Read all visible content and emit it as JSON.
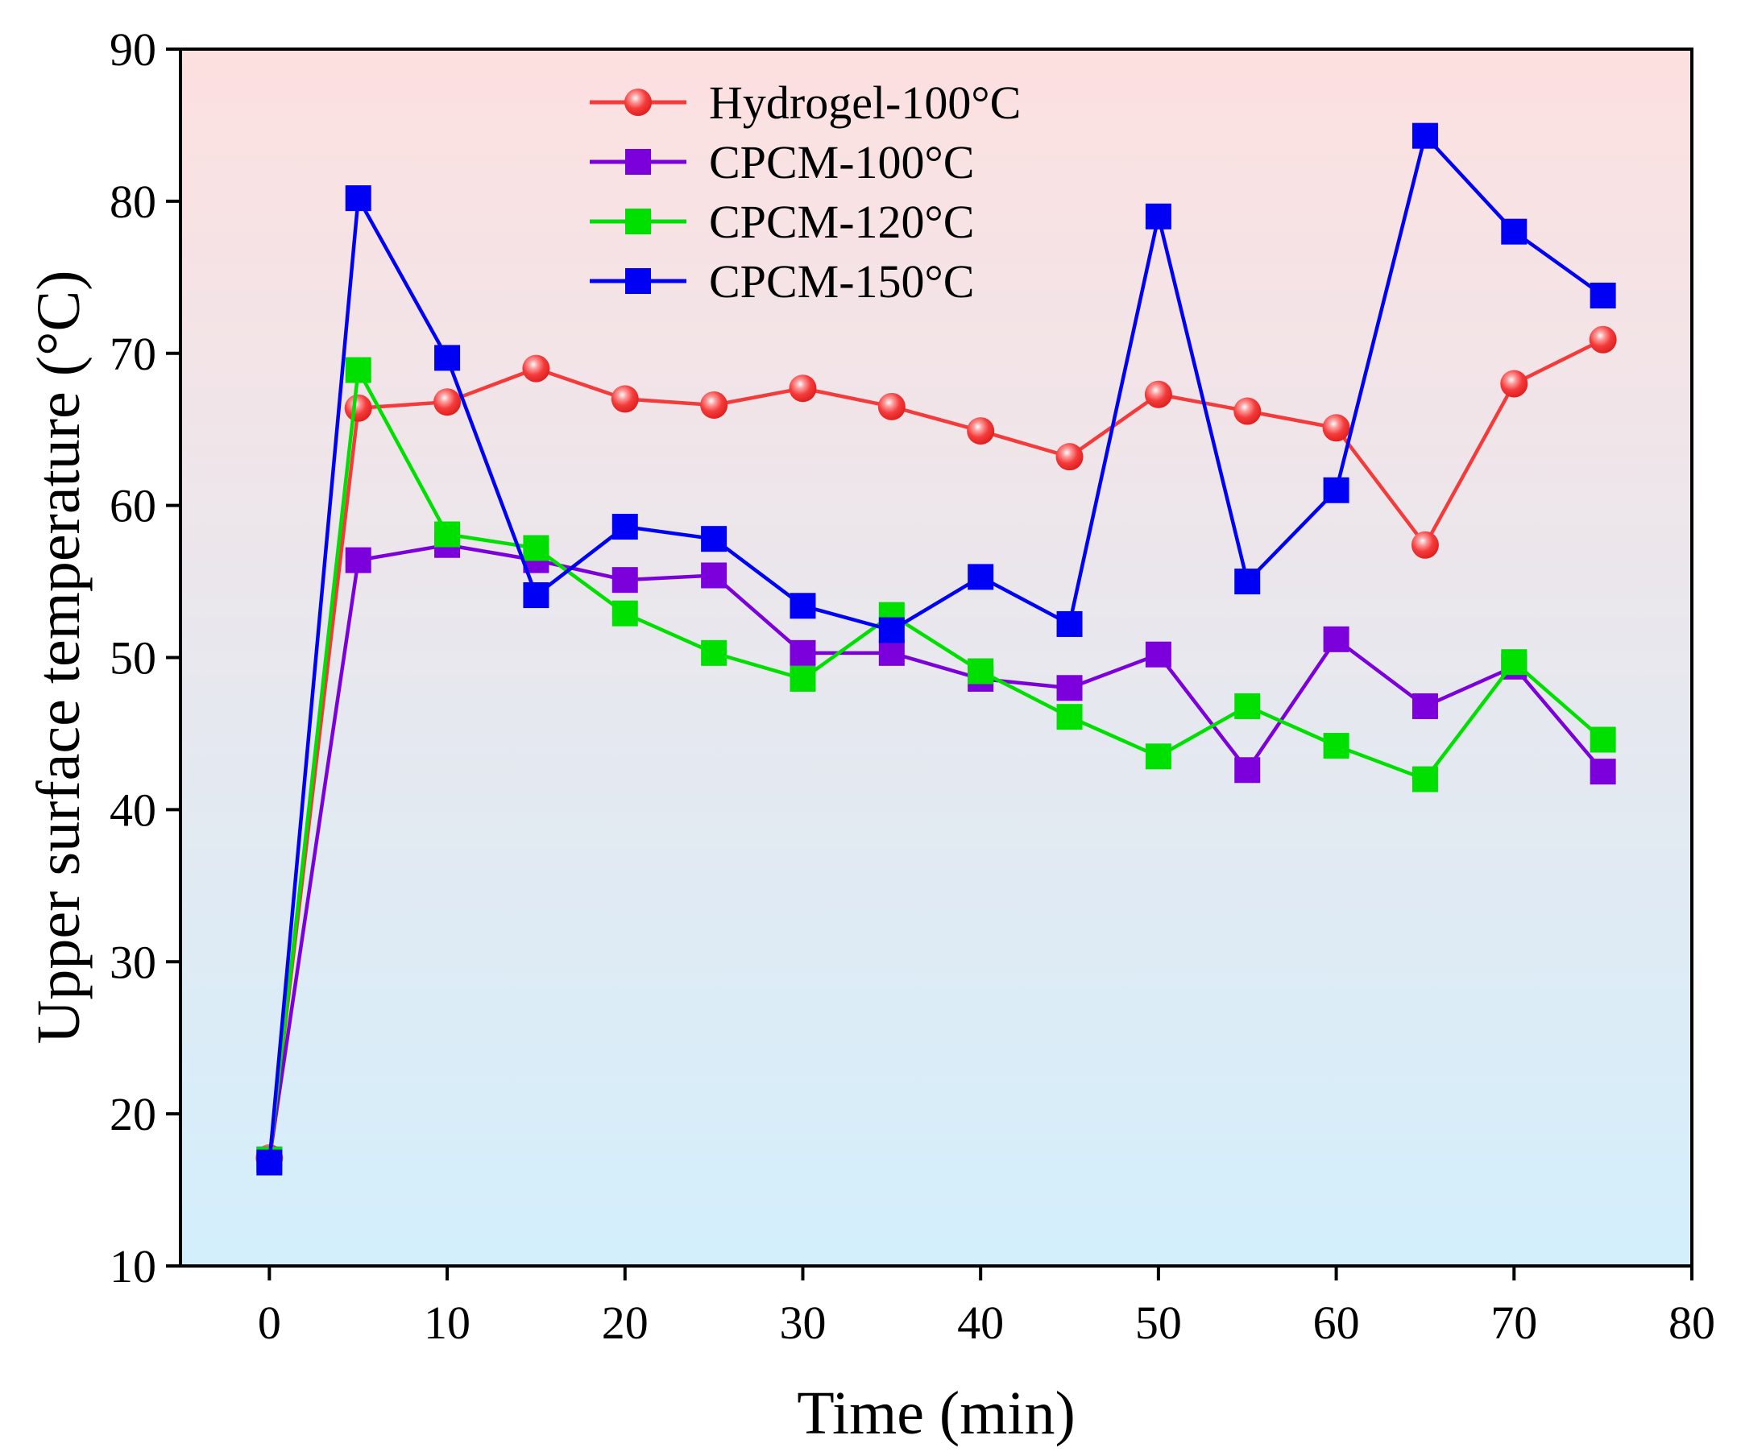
{
  "chart_data": {
    "type": "line",
    "title": "",
    "xlabel": "Time (min)",
    "ylabel": "Upper surface temperature (°C)",
    "xlim": [
      -5,
      80
    ],
    "ylim": [
      10,
      90
    ],
    "xticks": [
      0,
      10,
      20,
      30,
      40,
      50,
      60,
      70,
      80
    ],
    "yticks": [
      10,
      20,
      30,
      40,
      50,
      60,
      70,
      80,
      90
    ],
    "grid": false,
    "legend_position": "top-center",
    "background_gradient": {
      "top": "#fde0e0",
      "bottom": "#d3effc"
    },
    "x": [
      0,
      5,
      10,
      15,
      20,
      25,
      30,
      35,
      40,
      45,
      50,
      55,
      60,
      65,
      70,
      75
    ],
    "series": [
      {
        "name": "Hydrogel-100°C",
        "color": "#f43b3b",
        "marker": "circle",
        "values": [
          17.1,
          66.4,
          66.8,
          69.0,
          67.0,
          66.6,
          67.7,
          66.5,
          64.9,
          63.2,
          67.3,
          66.2,
          65.1,
          57.4,
          68.0,
          70.9
        ]
      },
      {
        "name": "CPCM-100°C",
        "color": "#7b00dc",
        "marker": "square",
        "values": [
          17.0,
          56.4,
          57.4,
          56.4,
          55.1,
          55.4,
          50.3,
          50.3,
          48.6,
          48.0,
          50.2,
          42.6,
          51.2,
          46.8,
          49.4,
          42.5
        ]
      },
      {
        "name": "CPCM-120°C",
        "color": "#00e000",
        "marker": "square",
        "values": [
          17.0,
          68.9,
          58.1,
          57.2,
          52.9,
          50.3,
          48.6,
          52.8,
          49.1,
          46.1,
          43.5,
          46.8,
          44.2,
          42.0,
          49.7,
          44.6
        ]
      },
      {
        "name": "CPCM-150°C",
        "color": "#0000f5",
        "marker": "square",
        "values": [
          16.8,
          80.2,
          69.7,
          54.1,
          58.6,
          57.8,
          53.4,
          51.8,
          55.3,
          52.2,
          79.0,
          55.0,
          61.0,
          84.3,
          78.0,
          73.8
        ]
      }
    ]
  }
}
